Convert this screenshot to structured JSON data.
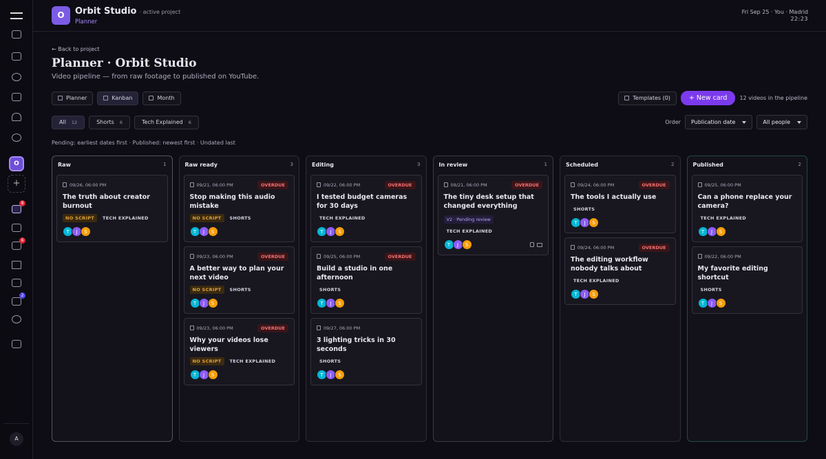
{
  "header": {
    "logo": "O",
    "title": "Orbit Studio",
    "subtitle": "· active project",
    "section": "Planner",
    "datetime": "Fri Sep 25 · You · Madrid",
    "time": "22:23"
  },
  "sidebar": {
    "project": "O",
    "badges": [
      "8",
      "6",
      "2"
    ],
    "user": "A"
  },
  "back": "← Back to project",
  "title": "Planner · Orbit Studio",
  "description": "Video pipeline — from raw footage to published on YouTube.",
  "views": [
    "Planner",
    "Kanban",
    "Month"
  ],
  "active_view": 1,
  "templates": "Templates (0)",
  "new_card": "+ New card",
  "pipeline": "12 videos in the pipeline",
  "filters": [
    {
      "label": "All",
      "count": 12
    },
    {
      "label": "Shorts",
      "count": 6
    },
    {
      "label": "Tech Explained",
      "count": 6
    }
  ],
  "active_filter": 0,
  "order_label": "Order",
  "order": "Publication date",
  "people": "All people",
  "note": "Pending: earliest dates first · Published: newest first · Undated last",
  "overdue_label": "OVERDUE",
  "no_script_label": "NO SCRIPT",
  "team": [
    "T",
    "J",
    "S"
  ],
  "columns": [
    {
      "name": "Raw",
      "count": 1,
      "cards": [
        {
          "date": "09/26, 06:00 PM",
          "overdue": false,
          "title": "The truth about creator burnout",
          "no_script": true,
          "tag": "TECH EXPLAINED"
        }
      ]
    },
    {
      "name": "Raw ready",
      "count": 3,
      "cards": [
        {
          "date": "09/21, 06:00 PM",
          "overdue": true,
          "title": "Stop making this audio mistake",
          "no_script": true,
          "tag": "SHORTS"
        },
        {
          "date": "09/23, 06:00 PM",
          "overdue": true,
          "title": "A better way to plan your next video",
          "no_script": true,
          "tag": "SHORTS"
        },
        {
          "date": "09/23, 06:00 PM",
          "overdue": true,
          "title": "Why your videos lose viewers",
          "no_script": true,
          "tag": "TECH EXPLAINED"
        }
      ]
    },
    {
      "name": "Editing",
      "count": 3,
      "cards": [
        {
          "date": "09/22, 06:00 PM",
          "overdue": true,
          "title": "I tested budget cameras for 30 days",
          "no_script": false,
          "tag": "TECH EXPLAINED"
        },
        {
          "date": "09/25, 06:00 PM",
          "overdue": true,
          "title": "Build a studio in one afternoon",
          "no_script": false,
          "tag": "SHORTS"
        },
        {
          "date": "09/27, 06:00 PM",
          "overdue": false,
          "title": "3 lighting tricks in 30 seconds",
          "no_script": false,
          "tag": "SHORTS"
        }
      ]
    },
    {
      "name": "In review",
      "count": 1,
      "cards": [
        {
          "date": "09/21, 06:00 PM",
          "overdue": true,
          "title": "The tiny desk setup that changed everything",
          "review": "V2 · Pending review",
          "no_script": false,
          "tag": "TECH EXPLAINED"
        }
      ]
    },
    {
      "name": "Scheduled",
      "count": 2,
      "cards": [
        {
          "date": "09/24, 06:00 PM",
          "overdue": true,
          "title": "The tools I actually use",
          "no_script": false,
          "tag": "SHORTS"
        },
        {
          "date": "09/24, 06:00 PM",
          "overdue": true,
          "title": "The editing workflow nobody talks about",
          "no_script": false,
          "tag": "TECH EXPLAINED"
        }
      ]
    },
    {
      "name": "Published",
      "count": 2,
      "cards": [
        {
          "date": "09/25, 06:00 PM",
          "overdue": false,
          "title": "Can a phone replace your camera?",
          "no_script": false,
          "tag": "TECH EXPLAINED"
        },
        {
          "date": "09/22, 06:00 PM",
          "overdue": false,
          "title": "My favorite editing shortcut",
          "no_script": false,
          "tag": "SHORTS"
        }
      ]
    }
  ]
}
